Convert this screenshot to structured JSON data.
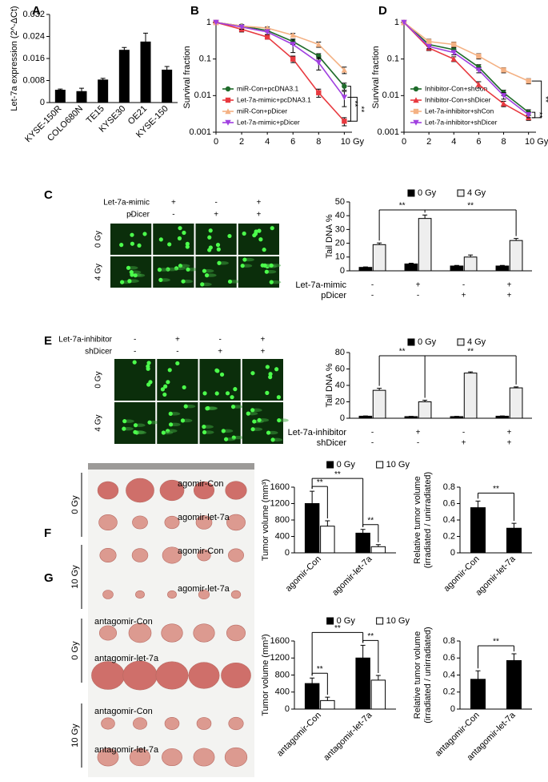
{
  "panel_labels": [
    "A",
    "B",
    "C",
    "D",
    "E",
    "F",
    "G"
  ],
  "images": [
    {
      "treatment_rows": [
        {
          "label": "Let-7a-mimic",
          "signs": [
            "-",
            "+",
            "-",
            "+"
          ]
        },
        {
          "label": "pDicer",
          "signs": [
            "-",
            "-",
            "+",
            "+"
          ]
        }
      ],
      "dose_labels": [
        "0 Gy",
        "4 Gy"
      ]
    },
    {
      "treatment_rows": [
        {
          "label": "Let-7a-inhibitor",
          "signs": [
            "-",
            "+",
            "-",
            "+"
          ]
        },
        {
          "label": "shDicer",
          "signs": [
            "-",
            "-",
            "+",
            "+"
          ]
        }
      ],
      "dose_labels": [
        "0 Gy",
        "4 Gy"
      ]
    },
    {
      "dose_labels": [
        "0 Gy",
        "10 Gy"
      ],
      "group_labels": [
        "agomir-Con",
        "agomir-let-7a",
        "agomir-Con",
        "agomir-let-7a"
      ]
    },
    {
      "dose_labels": [
        "0 Gy",
        "10 Gy"
      ],
      "group_labels": [
        "antagomir-Con",
        "antagomir-let-7a",
        "antagomir-Con",
        "antagomir-let-7a"
      ]
    }
  ],
  "chart_data": [
    {
      "type": "bar",
      "ylabel": "Let-7a expression (2^-ΔCt)",
      "categories": [
        "KYSE-150R",
        "COLO680N",
        "TE15",
        "KYSE30",
        "OE21",
        "KYSE-150"
      ],
      "values": [
        0.0045,
        0.004,
        0.0082,
        0.019,
        0.022,
        0.0118
      ],
      "errors": [
        0.0004,
        0.0012,
        0.0006,
        0.001,
        0.0032,
        0.0013
      ],
      "color": "#000000",
      "ylim": [
        0,
        0.032
      ],
      "yticks": [
        0,
        0.008,
        0.016,
        0.024,
        0.032
      ]
    },
    {
      "type": "line",
      "ylabel": "Survival  fraction",
      "x": [
        0,
        2,
        4,
        6,
        8,
        10
      ],
      "xlim": [
        0,
        10.6
      ],
      "xticks": [
        0,
        2,
        4,
        6,
        8,
        {
          "value": 10,
          "label": "10 Gy"
        }
      ],
      "ylim": [
        0.001,
        1
      ],
      "yticks": [
        0.001,
        0.01,
        0.1,
        1
      ],
      "log_y": true,
      "legend": "lower left",
      "annotations": [
        "**",
        "**"
      ],
      "series": [
        {
          "name": "miR-Con+pcDNA3.1",
          "color": "#1e6b2a",
          "marker": "circle",
          "values": [
            1,
            0.8,
            0.6,
            0.3,
            0.12,
            0.018
          ],
          "errors": [
            0,
            0.08,
            0.05,
            0.05,
            0.02,
            0.004
          ]
        },
        {
          "name": "Let-7a-mimic+pcDNA3.1",
          "color": "#e8393f",
          "marker": "square",
          "values": [
            1,
            0.65,
            0.4,
            0.1,
            0.012,
            0.002
          ],
          "errors": [
            0,
            0.1,
            0.05,
            0.02,
            0.003,
            0.0005
          ]
        },
        {
          "name": "miR-Con+pDicer",
          "color": "#f4b183",
          "marker": "triangle",
          "values": [
            1,
            0.8,
            0.7,
            0.45,
            0.25,
            0.05
          ],
          "errors": [
            0,
            0.05,
            0.05,
            0.05,
            0.04,
            0.01
          ]
        },
        {
          "name": "Let-7a-mimic+pDicer",
          "color": "#a040e0",
          "marker": "triangle-down",
          "values": [
            1,
            0.75,
            0.55,
            0.25,
            0.08,
            0.009
          ],
          "errors": [
            0,
            0.1,
            0.08,
            0.1,
            0.03,
            0.004
          ]
        }
      ]
    },
    {
      "type": "line",
      "ylabel": "Survival  fraction",
      "x": [
        0,
        2,
        4,
        6,
        8,
        10
      ],
      "xlim": [
        0,
        10.6
      ],
      "xticks": [
        0,
        2,
        4,
        6,
        8,
        {
          "value": 10,
          "label": "10 Gy"
        }
      ],
      "ylim": [
        0.001,
        1
      ],
      "yticks": [
        0.001,
        0.01,
        0.1,
        1
      ],
      "log_y": true,
      "legend": "lower left",
      "annotations": [
        "**",
        "**"
      ],
      "series": [
        {
          "name": "Inhibitor-Con+shCon",
          "color": "#1e6b2a",
          "marker": "circle",
          "values": [
            1,
            0.25,
            0.18,
            0.06,
            0.012,
            0.0035
          ],
          "errors": [
            0,
            0.03,
            0.02,
            0.01,
            0.002,
            0.0006
          ]
        },
        {
          "name": "Inhibitor-Con+shDicer",
          "color": "#e8393f",
          "marker": "triangle",
          "values": [
            1,
            0.2,
            0.1,
            0.02,
            0.006,
            0.0025
          ],
          "errors": [
            0,
            0.03,
            0.015,
            0.004,
            0.001,
            0.0004
          ]
        },
        {
          "name": "Let-7a-inhibitor+shCon",
          "color": "#f4b183",
          "marker": "square",
          "values": [
            1,
            0.3,
            0.25,
            0.12,
            0.05,
            0.025
          ],
          "errors": [
            0,
            0.05,
            0.04,
            0.02,
            0.008,
            0.004
          ]
        },
        {
          "name": "Let-7a-inhibitor+shDicer",
          "color": "#a040e0",
          "marker": "triangle-down",
          "values": [
            1,
            0.22,
            0.15,
            0.05,
            0.01,
            0.003
          ],
          "errors": [
            0,
            0.03,
            0.02,
            0.008,
            0.002,
            0.0005
          ]
        }
      ]
    },
    {
      "type": "grouped_bar",
      "ylabel": "Tail DNA %",
      "categories": [
        null,
        null,
        null,
        null
      ],
      "ylim": [
        0,
        50
      ],
      "yticks": [
        0,
        10,
        20,
        30,
        40,
        50
      ],
      "annotations": [
        "**",
        "**"
      ],
      "treatment_rows": [
        {
          "label": "Let-7a-mimic",
          "signs": [
            "-",
            "+",
            "-",
            "+"
          ]
        },
        {
          "label": "pDicer",
          "signs": [
            "-",
            "-",
            "+",
            "+"
          ]
        }
      ],
      "series": [
        {
          "name": "0 Gy",
          "color": "#000000",
          "values": [
            2.5,
            5,
            3.5,
            3.5
          ],
          "errors": [
            0.3,
            0.5,
            0.4,
            0.4
          ]
        },
        {
          "name": "4 Gy",
          "color": "#eeeeee",
          "values": [
            19,
            38,
            10,
            22
          ],
          "errors": [
            1.2,
            2.5,
            1.5,
            1.5
          ]
        }
      ]
    },
    {
      "type": "grouped_bar",
      "ylabel": "Tail DNA %",
      "categories": [
        null,
        null,
        null,
        null
      ],
      "ylim": [
        0,
        80
      ],
      "yticks": [
        0,
        20,
        40,
        60,
        80
      ],
      "annotations": [
        "**",
        "**"
      ],
      "treatment_rows": [
        {
          "label": "Let-7a-inhibitor",
          "signs": [
            "-",
            "+",
            "-",
            "+"
          ]
        },
        {
          "label": "shDicer",
          "signs": [
            "-",
            "-",
            "+",
            "+"
          ]
        }
      ],
      "series": [
        {
          "name": "0 Gy",
          "color": "#000000",
          "values": [
            2.5,
            2,
            2,
            2.5
          ],
          "errors": [
            0.3,
            0.3,
            0.3,
            0.3
          ]
        },
        {
          "name": "4 Gy",
          "color": "#eeeeee",
          "values": [
            34,
            20,
            55,
            37
          ],
          "errors": [
            2.5,
            2,
            1.5,
            1.2
          ]
        }
      ]
    },
    {
      "type": "grouped_bar",
      "ylabel": "Tumor volume (mm³)",
      "categories": [
        "agomir-Con",
        "agomir-let-7a"
      ],
      "ylim": [
        0,
        1600
      ],
      "yticks": [
        0,
        400,
        800,
        1200,
        1600
      ],
      "annotations": [
        "**",
        "**",
        "**"
      ],
      "series": [
        {
          "name": "0 Gy",
          "color": "#000000",
          "values": [
            1200,
            480
          ],
          "errors": [
            300,
            90
          ]
        },
        {
          "name": "10 Gy",
          "color": "#ffffff",
          "values": [
            650,
            150
          ],
          "errors": [
            130,
            50
          ]
        }
      ]
    },
    {
      "type": "bar",
      "ylabel": [
        "Relative tumor volume",
        "(irradiated / unirradiated)"
      ],
      "categories": [
        "agomir-Con",
        "agomir-let-7a"
      ],
      "values": [
        0.55,
        0.3
      ],
      "errors": [
        0.08,
        0.06
      ],
      "color": "#000000",
      "ylim": [
        0,
        0.8
      ],
      "yticks": [
        0,
        0.2,
        0.4,
        0.6,
        0.8
      ],
      "annotations": [
        "**"
      ]
    },
    {
      "type": "grouped_bar",
      "ylabel": "Tumor volume (mm³)",
      "categories": [
        "antagomir-Con",
        "antagomir-let-7a"
      ],
      "ylim": [
        0,
        1600
      ],
      "yticks": [
        0,
        400,
        800,
        1200,
        1600
      ],
      "annotations": [
        "**",
        "**",
        "**"
      ],
      "series": [
        {
          "name": "0 Gy",
          "color": "#000000",
          "values": [
            600,
            1200
          ],
          "errors": [
            130,
            300
          ]
        },
        {
          "name": "10 Gy",
          "color": "#ffffff",
          "values": [
            200,
            680
          ],
          "errors": [
            80,
            110
          ]
        }
      ]
    },
    {
      "type": "bar",
      "ylabel": [
        "Relative tumor volume",
        "(irradiated / unirradiated)"
      ],
      "categories": [
        "antagomir-Con",
        "antagomir-let-7a"
      ],
      "values": [
        0.35,
        0.57
      ],
      "errors": [
        0.1,
        0.08
      ],
      "color": "#000000",
      "ylim": [
        0,
        0.8
      ],
      "yticks": [
        0,
        0.2,
        0.4,
        0.6,
        0.8
      ],
      "annotations": [
        "**"
      ]
    }
  ]
}
